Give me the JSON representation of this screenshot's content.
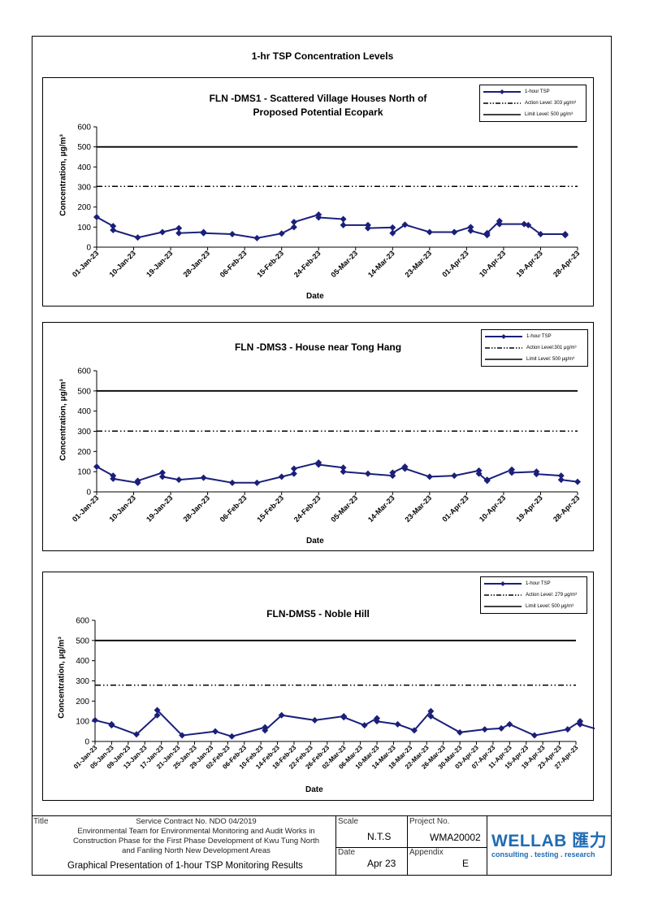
{
  "page": {
    "title": "1-hr TSP Concentration Levels"
  },
  "chart_data": [
    {
      "type": "line",
      "title": "FLN -DMS1 - Scattered Village Houses North of\nProposed Potential Ecopark",
      "xlabel": "Date",
      "ylabel": "Concentration, μg/m³",
      "ylim": [
        0,
        600
      ],
      "yticks": [
        "0",
        "100",
        "200",
        "300",
        "400",
        "500",
        "600"
      ],
      "xticks": [
        "01-Jan-23",
        "10-Jan-23",
        "19-Jan-23",
        "28-Jan-23",
        "06-Feb-23",
        "15-Feb-23",
        "24-Feb-23",
        "05-Mar-23",
        "14-Mar-23",
        "23-Mar-23",
        "01-Apr-23",
        "10-Apr-23",
        "19-Apr-23",
        "28-Apr-23"
      ],
      "xrange_days": [
        0,
        117
      ],
      "legend": [
        "1-hour TSP",
        "Action Level: 303 μg/m³",
        "Limit Level: 500 μg/m³"
      ],
      "action_level": 303,
      "limit_level": 500,
      "series": [
        {
          "days": [
            0,
            4,
            4,
            10,
            16,
            20,
            20,
            26,
            26,
            33,
            39,
            45,
            48,
            48,
            54,
            54,
            60,
            60,
            66,
            66,
            72,
            72,
            75,
            81,
            87,
            87,
            91,
            91,
            95,
            95,
            98,
            98,
            104,
            105,
            108,
            114,
            114
          ],
          "values": [
            150,
            105,
            85,
            48,
            75,
            95,
            70,
            75,
            70,
            65,
            45,
            68,
            100,
            125,
            162,
            148,
            140,
            110,
            110,
            95,
            98,
            70,
            112,
            75,
            75,
            75,
            100,
            82,
            60,
            70,
            130,
            115,
            115,
            110,
            65,
            65,
            60
          ]
        }
      ]
    },
    {
      "type": "line",
      "title": "FLN -DMS3 - House near Tong Hang",
      "xlabel": "Date",
      "ylabel": "Concentration, μg/m³",
      "ylim": [
        0,
        600
      ],
      "yticks": [
        "0",
        "100",
        "200",
        "300",
        "400",
        "500",
        "600"
      ],
      "xticks": [
        "01-Jan-23",
        "10-Jan-23",
        "19-Jan-23",
        "28-Jan-23",
        "06-Feb-23",
        "15-Feb-23",
        "24-Feb-23",
        "05-Mar-23",
        "14-Mar-23",
        "23-Mar-23",
        "01-Apr-23",
        "10-Apr-23",
        "19-Apr-23",
        "28-Apr-23"
      ],
      "xrange_days": [
        0,
        117
      ],
      "legend": [
        "1-hour TSP",
        "Action Level:301 μg/m³",
        "Limit Level: 500 μg/m³"
      ],
      "action_level": 301,
      "limit_level": 500,
      "series": [
        {
          "days": [
            0,
            4,
            4,
            10,
            10,
            16,
            16,
            20,
            26,
            33,
            39,
            45,
            48,
            48,
            54,
            54,
            60,
            60,
            66,
            72,
            72,
            75,
            75,
            81,
            87,
            93,
            93,
            95,
            95,
            101,
            101,
            107,
            107,
            113,
            113,
            117
          ],
          "values": [
            125,
            80,
            65,
            45,
            55,
            95,
            75,
            60,
            70,
            45,
            45,
            75,
            90,
            115,
            145,
            135,
            120,
            100,
            90,
            80,
            95,
            125,
            115,
            75,
            80,
            105,
            90,
            55,
            60,
            110,
            95,
            100,
            88,
            80,
            60,
            50
          ]
        }
      ]
    },
    {
      "type": "line",
      "title": "FLN-DMS5 - Noble Hill",
      "xlabel": "Date",
      "ylabel": "Concentration, μg/m³",
      "ylim": [
        0,
        600
      ],
      "yticks": [
        "0",
        "100",
        "200",
        "300",
        "400",
        "500",
        "600"
      ],
      "xticks": [
        "01-Jan-23",
        "05-Jan-23",
        "09-Jan-23",
        "13-Jan-23",
        "17-Jan-23",
        "21-Jan-23",
        "25-Jan-23",
        "29-Jan-23",
        "02-Feb-23",
        "06-Feb-23",
        "10-Feb-23",
        "14-Feb-23",
        "18-Feb-23",
        "22-Feb-23",
        "26-Feb-23",
        "02-Mar-23",
        "06-Mar-23",
        "10-Mar-23",
        "14-Mar-23",
        "18-Mar-23",
        "22-Mar-23",
        "26-Mar-23",
        "30-Mar-23",
        "03-Apr-23",
        "07-Apr-23",
        "11-Apr-23",
        "15-Apr-23",
        "19-Apr-23",
        "23-Apr-23",
        "27-Apr-23"
      ],
      "xrange_days": [
        0,
        116
      ],
      "legend": [
        "1-hour TSP",
        "Action Level: 279 μg/m³",
        "Limit Level: 500 μg/m³"
      ],
      "action_level": 279,
      "limit_level": 500,
      "series": [
        {
          "days": [
            0,
            4,
            4,
            10,
            15,
            15,
            21,
            29,
            33,
            41,
            41,
            45,
            53,
            60,
            60,
            65,
            68,
            68,
            73,
            77,
            81,
            81,
            88,
            94,
            98,
            100,
            106,
            114,
            117,
            117,
            122
          ],
          "values": [
            105,
            85,
            80,
            35,
            130,
            155,
            30,
            50,
            25,
            70,
            55,
            130,
            105,
            125,
            120,
            80,
            115,
            100,
            85,
            55,
            150,
            125,
            45,
            60,
            65,
            85,
            30,
            60,
            100,
            85,
            55
          ]
        }
      ]
    }
  ],
  "title_block": {
    "title_label": "Title",
    "contract_lines": [
      "Service Contract No. NDO 04/2019",
      "Environmental Team for Environmental Monitoring and Audit Works in",
      "Construction Phase for the First Phase Development of Kwu Tung North",
      "and Fanling North New Development Areas"
    ],
    "main_title": "Graphical Presentation of 1-hour TSP Monitoring Results",
    "scale_label": "Scale",
    "scale_value": "N.T.S",
    "date_label": "Date",
    "date_value": "Apr 23",
    "project_label": "Project No.",
    "project_value": "WMA20002",
    "appendix_label": "Appendix",
    "appendix_value": "E",
    "logo_text": "WELLAB 匯力",
    "logo_tagline": "consulting . testing . research"
  },
  "colors": {
    "series": "#1a1f7a",
    "logo": "#1f6bb3"
  }
}
